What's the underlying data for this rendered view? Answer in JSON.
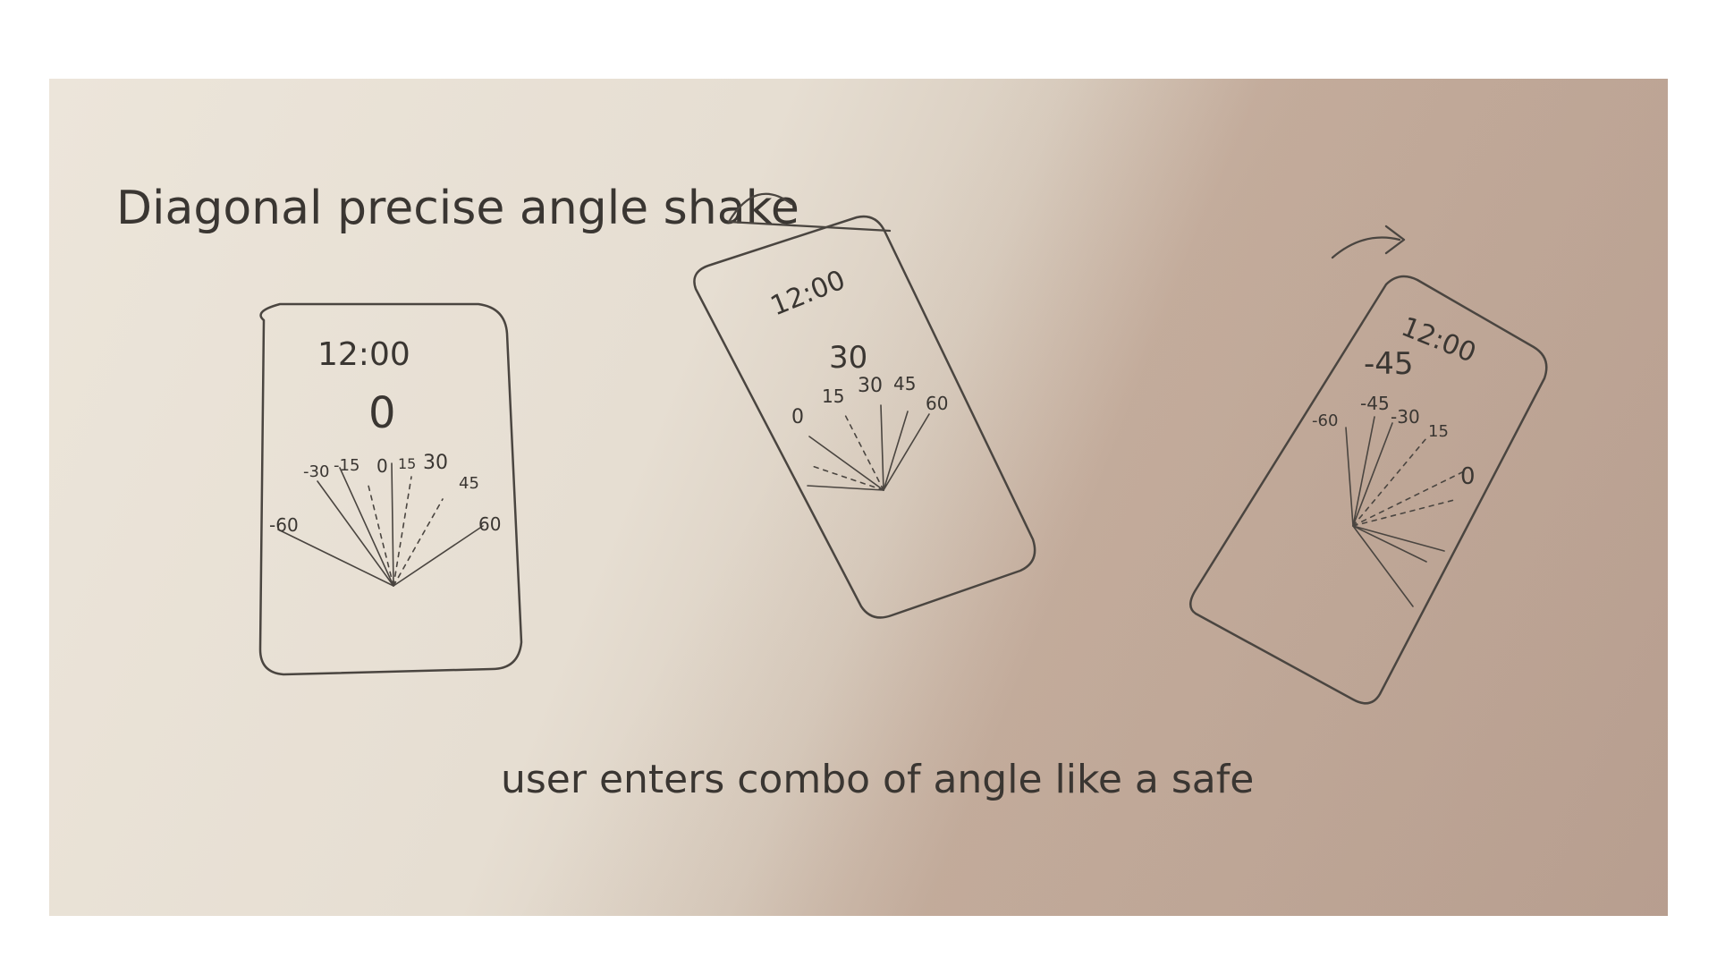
{
  "title": "Diagonal precise angle shake",
  "caption": "user enters combo of angle like a safe",
  "phones": [
    {
      "time": "12:00",
      "angle": "0",
      "ticks": [
        "-60",
        "-30",
        "-15",
        "0",
        "15",
        "30",
        "45",
        "60"
      ]
    },
    {
      "time": "12:00",
      "angle": "30",
      "ticks": [
        "0",
        "15",
        "30",
        "45",
        "60"
      ]
    },
    {
      "time": "12:00",
      "angle": "-45",
      "ticks": [
        "-60",
        "-45",
        "-30",
        "15",
        "0"
      ]
    }
  ],
  "colors": {
    "paper": "#ece5da",
    "shadow": "#c3ab9c",
    "pencil": "#4a4540"
  }
}
